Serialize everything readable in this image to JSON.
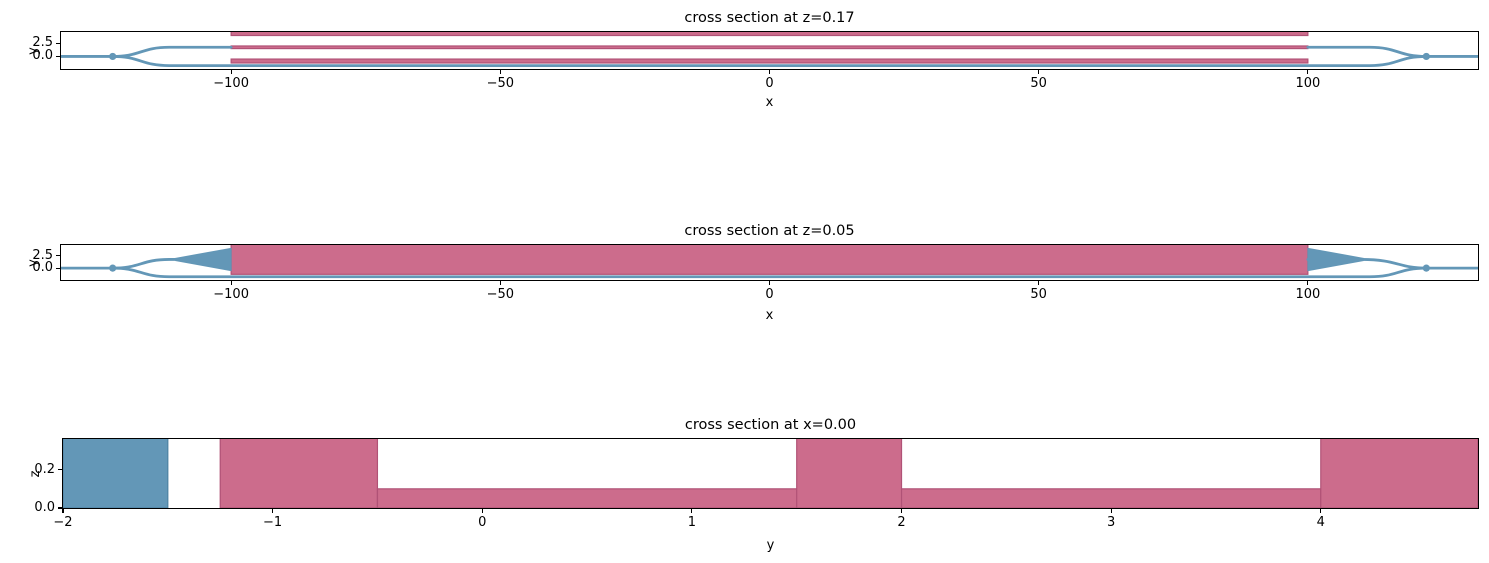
{
  "figure": {
    "bg": "#ffffff",
    "text_color": "#000000",
    "colors": {
      "waveguide_fill": "#6397b7",
      "waveguide_edge": "#4d83a3",
      "heater_fill": "#cc6c8c",
      "heater_edge": "#b05276"
    }
  },
  "chart_data": [
    {
      "type": "area",
      "kind": "top-view cross section of MZI waveguide layout",
      "title": "cross section at z=0.17",
      "xlabel": "x",
      "ylabel": "y",
      "xlim": [
        -131.6,
        131.6
      ],
      "ylim": [
        -2.4,
        4.67
      ],
      "xticks": [
        -100,
        -50,
        0,
        50,
        100
      ],
      "xtick_labels": [
        "−100",
        "−50",
        "0",
        "50",
        "100"
      ],
      "yticks": [
        2.5,
        0.0
      ],
      "ytick_labels": [
        "2.5",
        "0.0"
      ],
      "grid": false,
      "legend": null,
      "rects": [
        {
          "x0": -100,
          "x1": 100,
          "y0": -1.25,
          "y1": -0.5,
          "material": "heater"
        },
        {
          "x0": -100,
          "x1": 100,
          "y0": 1.5,
          "y1": 2.0,
          "material": "heater"
        },
        {
          "x0": -100,
          "x1": 100,
          "y0": 4.0,
          "y1": 4.9,
          "material": "heater"
        }
      ],
      "paths": [
        [
          "M",
          -131.6,
          0,
          "L",
          -122,
          0
        ],
        [
          "M",
          -122,
          0,
          "C",
          -116.75,
          0,
          -116.75,
          1.75,
          -111.5,
          1.75,
          "L",
          -100,
          1.75
        ],
        [
          "M",
          -122,
          0,
          "C",
          -116.75,
          0,
          -116.75,
          -1.75,
          -111.5,
          -1.75,
          "L",
          111.5,
          -1.75,
          "C",
          116.75,
          -1.75,
          116.75,
          0,
          122,
          0
        ],
        [
          "M",
          100,
          1.75,
          "L",
          111.5,
          1.75,
          "C",
          116.75,
          1.75,
          116.75,
          0,
          122,
          0
        ],
        [
          "M",
          122,
          0,
          "L",
          131.6,
          0
        ]
      ],
      "polys": [],
      "dots": [
        [
          -122,
          0
        ],
        [
          122,
          0
        ]
      ]
    },
    {
      "type": "area",
      "kind": "top-view cross section of MZI waveguide layout at slab level",
      "title": "cross section at z=0.05",
      "xlabel": "x",
      "ylabel": "y",
      "xlim": [
        -131.6,
        131.6
      ],
      "ylim": [
        -2.4,
        4.67
      ],
      "xticks": [
        -100,
        -50,
        0,
        50,
        100
      ],
      "xtick_labels": [
        "−100",
        "−50",
        "0",
        "50",
        "100"
      ],
      "yticks": [
        2.5,
        0.0
      ],
      "ytick_labels": [
        "2.5",
        "0.0"
      ],
      "grid": false,
      "legend": null,
      "rects": [
        {
          "x0": -100,
          "x1": 100,
          "y0": -1.25,
          "y1": 4.9,
          "material": "heater"
        }
      ],
      "paths": [
        [
          "M",
          -131.6,
          0,
          "L",
          -122,
          0
        ],
        [
          "M",
          -122,
          0,
          "C",
          -116.75,
          0,
          -116.75,
          1.75,
          -111.5,
          1.75,
          "L",
          -110,
          1.75
        ],
        [
          "M",
          -122,
          0,
          "C",
          -116.75,
          0,
          -116.75,
          -1.75,
          -111.5,
          -1.75,
          "L",
          111.5,
          -1.75,
          "C",
          116.75,
          -1.75,
          116.75,
          0,
          122,
          0
        ],
        [
          "M",
          100,
          1.75,
          "L",
          110,
          1.75
        ],
        [
          "M",
          110,
          1.75,
          "C",
          116.75,
          1.75,
          116.75,
          0,
          122,
          0
        ],
        [
          "M",
          122,
          0,
          "L",
          131.6,
          0
        ]
      ],
      "polys": [
        [
          [
            -110.3,
            1.98
          ],
          [
            -100,
            4.0
          ],
          [
            -100,
            -0.5
          ],
          [
            -110.3,
            1.52
          ]
        ],
        [
          [
            110.3,
            1.98
          ],
          [
            100,
            4.0
          ],
          [
            100,
            -0.5
          ],
          [
            110.3,
            1.52
          ]
        ]
      ],
      "dots": [
        [
          -122,
          0
        ],
        [
          122,
          0
        ]
      ]
    },
    {
      "type": "area",
      "kind": "side-view cross section (y-z plane)",
      "title": "cross section at x=0.00",
      "xlabel": "y",
      "ylabel": "z",
      "xlim": [
        -2,
        4.75
      ],
      "ylim": [
        0,
        0.36
      ],
      "xticks": [
        -2,
        -1,
        0,
        1,
        2,
        3,
        4
      ],
      "xtick_labels": [
        "−2",
        "−1",
        "0",
        "1",
        "2",
        "3",
        "4"
      ],
      "yticks": [
        0.2,
        0.0
      ],
      "ytick_labels": [
        "0.2",
        "0.0"
      ],
      "grid": false,
      "legend": null,
      "rects": [
        {
          "x0": -2,
          "x1": -1.5,
          "y0": 0,
          "y1": 0.37,
          "material": "waveguide"
        },
        {
          "x0": -1.25,
          "x1": -0.5,
          "y0": 0,
          "y1": 0.37,
          "material": "heater"
        },
        {
          "x0": -0.5,
          "x1": 4.0,
          "y0": 0,
          "y1": 0.1,
          "material": "heater"
        },
        {
          "x0": 1.5,
          "x1": 2.0,
          "y0": 0,
          "y1": 0.37,
          "material": "heater"
        },
        {
          "x0": 4.0,
          "x1": 4.75,
          "y0": 0,
          "y1": 0.37,
          "material": "heater"
        }
      ],
      "paths": [],
      "polys": [],
      "dots": []
    }
  ]
}
